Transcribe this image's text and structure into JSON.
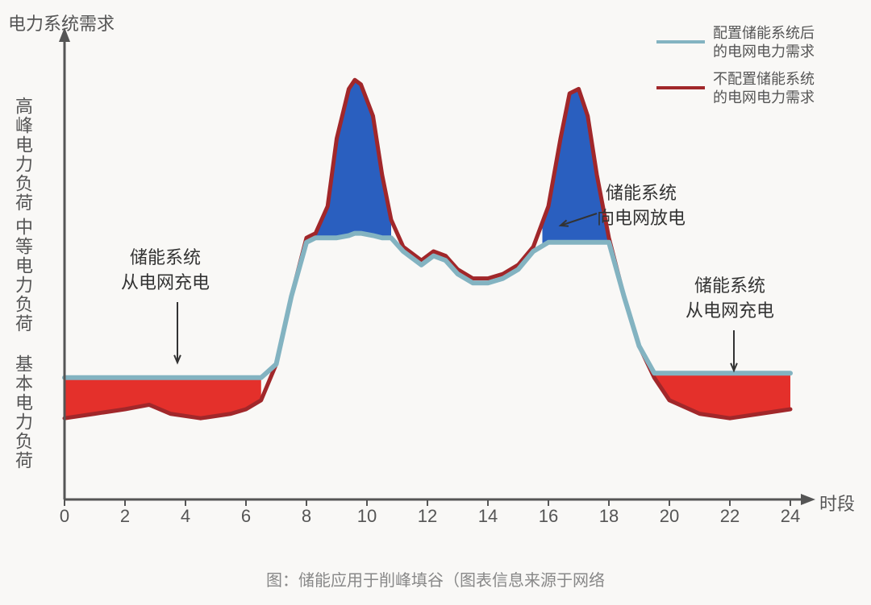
{
  "chart": {
    "type": "area-line",
    "background_color": "#f9f8f6",
    "axis_title_y": "电力系统需求",
    "axis_title_x": "时段",
    "y_labels": [
      "高峰电力负荷",
      "中等电力负荷",
      "基本电力负荷"
    ],
    "x_ticks": [
      0,
      2,
      4,
      6,
      8,
      10,
      12,
      14,
      16,
      18,
      20,
      22,
      24
    ],
    "xlim": [
      0,
      24
    ],
    "ylim": [
      0,
      100
    ],
    "axis_color": "#555555",
    "tick_fontsize": 22,
    "label_fontsize": 22,
    "line_width_without": 5,
    "line_width_with": 6,
    "color_without_storage": "#a1272a",
    "color_with_storage": "#83b3c1",
    "fill_charge_color": "#e4302b",
    "fill_discharge_color": "#2a5fbf",
    "series_without_storage": [
      [
        0,
        18
      ],
      [
        1,
        19
      ],
      [
        2,
        20
      ],
      [
        2.8,
        21
      ],
      [
        3.5,
        19
      ],
      [
        4.5,
        18
      ],
      [
        5.5,
        19
      ],
      [
        6,
        20
      ],
      [
        6.5,
        22
      ],
      [
        7,
        30
      ],
      [
        7.5,
        45
      ],
      [
        8,
        58
      ],
      [
        8.3,
        59
      ],
      [
        8.7,
        65
      ],
      [
        9,
        80
      ],
      [
        9.4,
        91
      ],
      [
        9.6,
        93
      ],
      [
        9.8,
        92
      ],
      [
        10.2,
        85
      ],
      [
        10.5,
        72
      ],
      [
        10.8,
        62
      ],
      [
        11.2,
        56
      ],
      [
        11.8,
        53
      ],
      [
        12.2,
        55
      ],
      [
        12.6,
        54
      ],
      [
        13,
        51
      ],
      [
        13.5,
        49
      ],
      [
        14,
        49
      ],
      [
        14.5,
        50
      ],
      [
        15,
        52
      ],
      [
        15.5,
        56
      ],
      [
        16,
        65
      ],
      [
        16.4,
        80
      ],
      [
        16.7,
        90
      ],
      [
        17,
        91
      ],
      [
        17.3,
        85
      ],
      [
        17.6,
        72
      ],
      [
        18,
        58
      ],
      [
        18.5,
        45
      ],
      [
        19,
        34
      ],
      [
        19.5,
        27
      ],
      [
        20,
        22
      ],
      [
        21,
        19
      ],
      [
        22,
        18
      ],
      [
        23,
        19
      ],
      [
        24,
        20
      ]
    ],
    "series_with_storage": [
      [
        0,
        27
      ],
      [
        1,
        27
      ],
      [
        2,
        27
      ],
      [
        3,
        27
      ],
      [
        4,
        27
      ],
      [
        5,
        27
      ],
      [
        6,
        27
      ],
      [
        6.5,
        27
      ],
      [
        7,
        30
      ],
      [
        7.5,
        45
      ],
      [
        8,
        57
      ],
      [
        8.3,
        58
      ],
      [
        8.7,
        58
      ],
      [
        9,
        58
      ],
      [
        9.4,
        58.5
      ],
      [
        9.6,
        59
      ],
      [
        9.8,
        59
      ],
      [
        10.2,
        58.5
      ],
      [
        10.5,
        58
      ],
      [
        10.8,
        58
      ],
      [
        11.2,
        55
      ],
      [
        11.8,
        52
      ],
      [
        12.2,
        54
      ],
      [
        12.6,
        53
      ],
      [
        13,
        50
      ],
      [
        13.5,
        48
      ],
      [
        14,
        48
      ],
      [
        14.5,
        49
      ],
      [
        15,
        51
      ],
      [
        15.5,
        55
      ],
      [
        16,
        57
      ],
      [
        16.4,
        57
      ],
      [
        16.7,
        57
      ],
      [
        17,
        57
      ],
      [
        17.3,
        57
      ],
      [
        17.6,
        57
      ],
      [
        18,
        57
      ],
      [
        18.5,
        45
      ],
      [
        19,
        34
      ],
      [
        19.5,
        28
      ],
      [
        20,
        28
      ],
      [
        21,
        28
      ],
      [
        22,
        28
      ],
      [
        23,
        28
      ],
      [
        24,
        28
      ]
    ],
    "charge_regions": [
      [
        0,
        6.5
      ],
      [
        19.5,
        24
      ]
    ],
    "discharge_regions": [
      [
        8.3,
        10.8
      ],
      [
        15.8,
        18
      ]
    ]
  },
  "legend": {
    "items": [
      {
        "color": "#83b3c1",
        "label_line1": "配置储能系统后",
        "label_line2": "的电网电力需求"
      },
      {
        "color": "#a1272a",
        "label_line1": "不配置储能系统",
        "label_line2": "的电网电力需求"
      }
    ]
  },
  "annotations": {
    "charge_left": {
      "line1": "储能系统",
      "line2": "从电网充电"
    },
    "discharge": {
      "line1": "储能系统",
      "line2": "向电网放电"
    },
    "charge_right": {
      "line1": "储能系统",
      "line2": "从电网充电"
    }
  },
  "caption": "图：储能应用于削峰填谷（图表信息来源于网络"
}
